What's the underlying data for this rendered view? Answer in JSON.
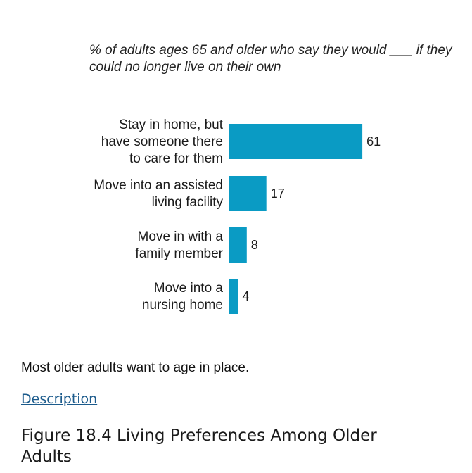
{
  "chart_data": {
    "type": "bar",
    "orientation": "horizontal",
    "subtitle": "% of adults ages 65 and older who say they would ___ if they could no longer live on their own",
    "categories": [
      "Stay in home, but have someone there to care for them",
      "Move into an assisted living facility",
      "Move in with a family member",
      "Move into a nursing home"
    ],
    "category_lines": [
      [
        "Stay in home, but",
        "have someone there",
        "to care for them"
      ],
      [
        "Move into an assisted",
        "living facility"
      ],
      [
        "Move in with a",
        "family member"
      ],
      [
        "Move into a",
        "nursing home"
      ]
    ],
    "values": [
      61,
      17,
      8,
      4
    ],
    "bar_color": "#0a9bc4",
    "grid": false,
    "legend": "none"
  },
  "caption": "Most older adults want to age in place.",
  "description_link": "Description",
  "figure_title": "Figure 18.4 Living Preferences Among Older Adults"
}
